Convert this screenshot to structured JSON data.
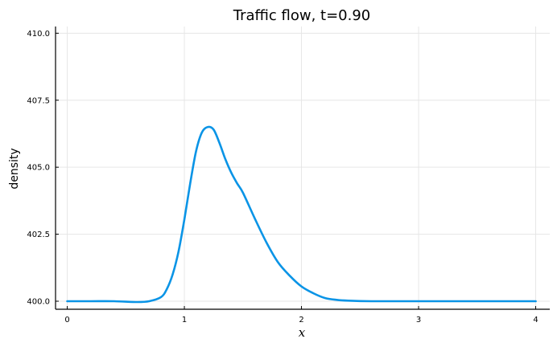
{
  "chart_data": {
    "type": "line",
    "title": "Traffic flow, t=0.90",
    "xlabel": "x",
    "ylabel": "density",
    "xlim": [
      -0.1,
      4.12
    ],
    "ylim": [
      399.7,
      410.25
    ],
    "xticks": [
      0,
      1,
      2,
      3,
      4
    ],
    "xtick_labels": [
      "0",
      "1",
      "2",
      "3",
      "4"
    ],
    "yticks": [
      400.0,
      402.5,
      405.0,
      407.5,
      410.0
    ],
    "ytick_labels": [
      "400.0",
      "402.5",
      "405.0",
      "407.5",
      "410.0"
    ],
    "grid": true,
    "legend": "none",
    "series": [
      {
        "name": "density",
        "color": "#0a94e6",
        "x": [
          0.0,
          0.2,
          0.4,
          0.6,
          0.7,
          0.8,
          0.85,
          0.9,
          0.95,
          1.0,
          1.05,
          1.1,
          1.15,
          1.2,
          1.25,
          1.3,
          1.35,
          1.4,
          1.45,
          1.5,
          1.6,
          1.7,
          1.8,
          1.9,
          2.0,
          2.1,
          2.2,
          2.3,
          2.4,
          2.6,
          3.0,
          3.5,
          4.0
        ],
        "y": [
          400.0,
          400.0,
          400.0,
          399.97,
          400.0,
          400.15,
          400.45,
          401.0,
          401.85,
          403.05,
          404.4,
          405.6,
          406.3,
          406.5,
          406.4,
          405.9,
          405.3,
          404.8,
          404.4,
          404.05,
          403.1,
          402.2,
          401.45,
          400.95,
          400.55,
          400.3,
          400.12,
          400.05,
          400.02,
          400.0,
          400.0,
          400.0,
          400.0
        ]
      }
    ]
  }
}
